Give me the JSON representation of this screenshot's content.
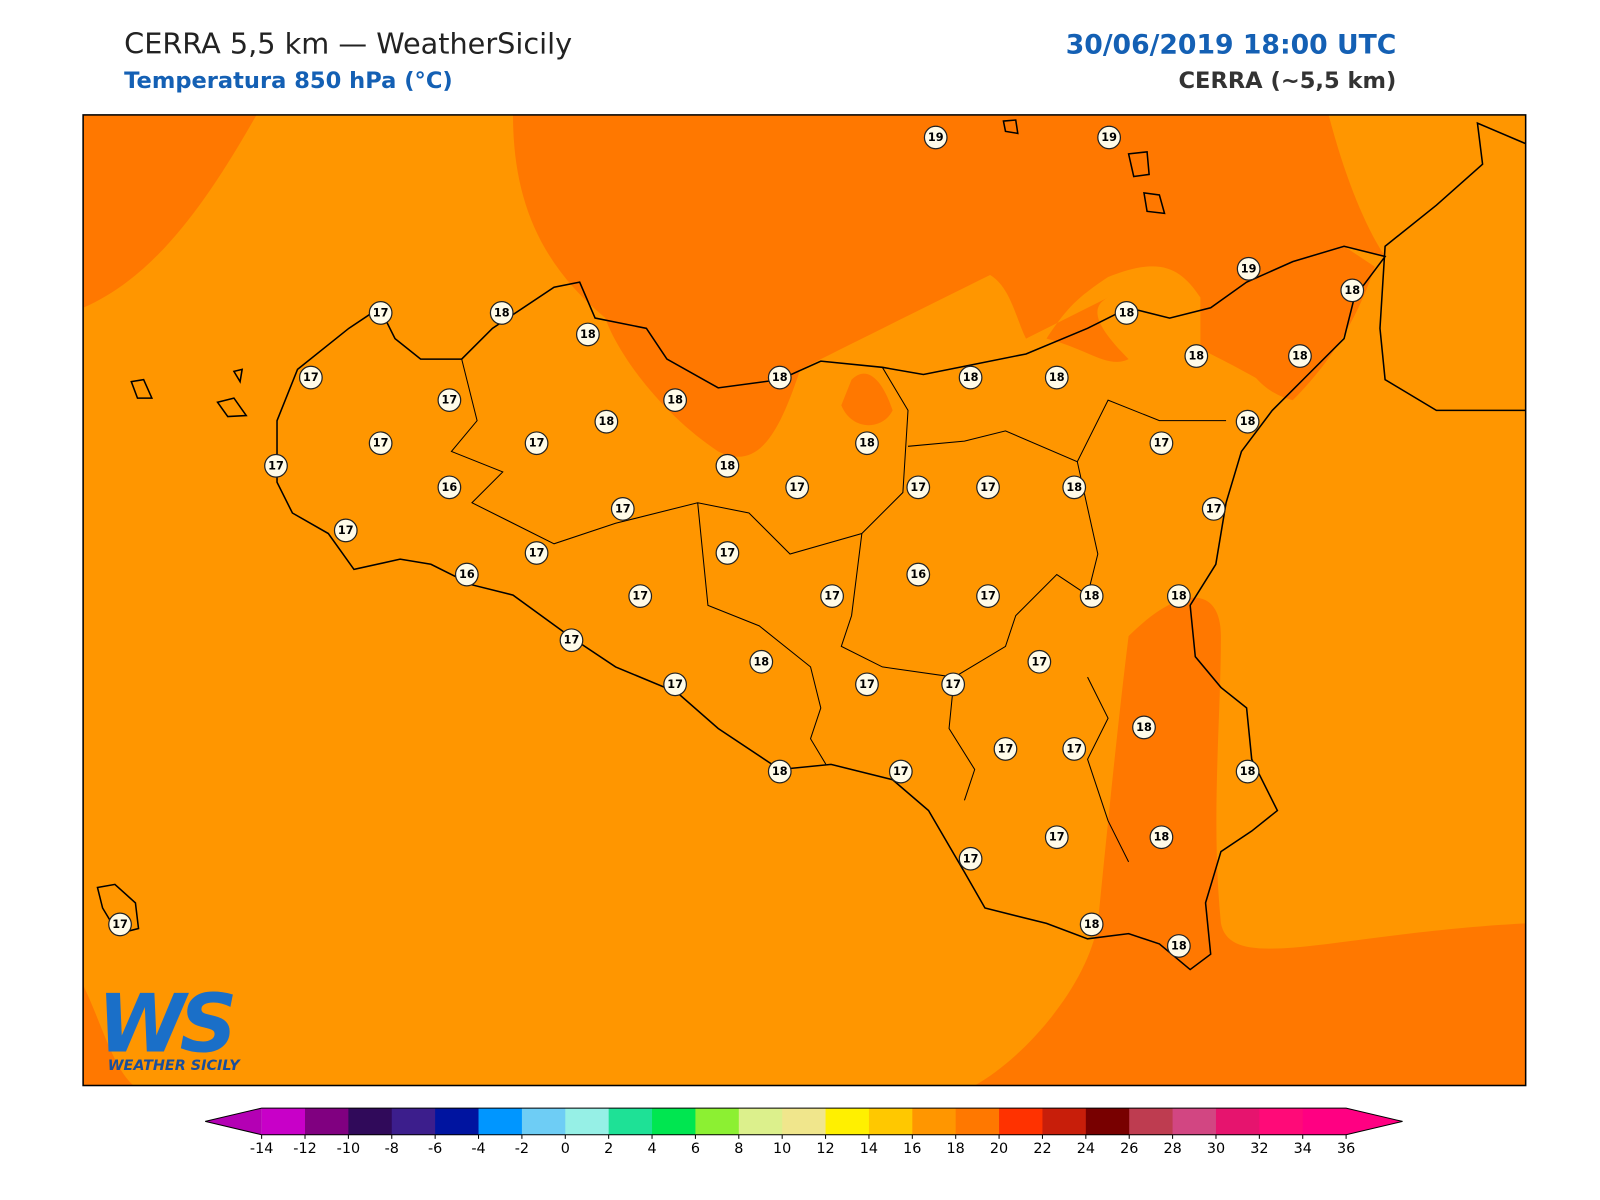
{
  "header": {
    "title": "CERRA 5,5 km — WeatherSicily",
    "subtitle": "Temperatura 850 hPa (°C)",
    "date": "30/06/2019 18:00 UTC",
    "model": "CERRA (~5,5 km)"
  },
  "map": {
    "field_color": "#ff9600",
    "warm_color": "#ff7800",
    "stations": [
      19,
      19,
      19,
      18,
      17,
      18,
      18,
      18,
      17,
      18,
      18,
      18,
      18,
      18,
      17,
      18,
      18,
      18,
      17,
      17,
      18,
      17,
      17,
      18,
      16,
      17,
      17,
      17,
      18,
      17,
      17,
      17,
      17,
      17,
      16,
      16,
      17,
      17,
      17,
      18,
      18,
      17,
      17,
      18,
      17,
      17,
      17,
      18,
      17,
      17,
      18,
      17,
      18,
      17,
      18,
      17,
      17,
      18,
      18
    ]
  },
  "colorbar": {
    "ticks": [
      -14,
      -12,
      -10,
      -8,
      -6,
      -4,
      -2,
      0,
      2,
      4,
      6,
      8,
      10,
      12,
      14,
      16,
      18,
      20,
      22,
      24,
      26,
      28,
      30,
      32,
      34,
      36
    ],
    "colors": [
      "#c800c8",
      "#800080",
      "#300a5a",
      "#3c1e8c",
      "#0014a0",
      "#0096ff",
      "#6ecdf5",
      "#96f0e6",
      "#1ee196",
      "#00e650",
      "#8cf032",
      "#dcf08c",
      "#f0e68c",
      "#fff000",
      "#ffc800",
      "#ff9600",
      "#ff7800",
      "#ff3200",
      "#c81e0a",
      "#780000",
      "#be3c50",
      "#d24682",
      "#e6146e",
      "#ff0a78",
      "#ff0082"
    ],
    "under_color": "#b400b4",
    "over_color": "#ff0082"
  },
  "logo": {
    "mark": "WS",
    "text": "WEATHER SICILY"
  }
}
